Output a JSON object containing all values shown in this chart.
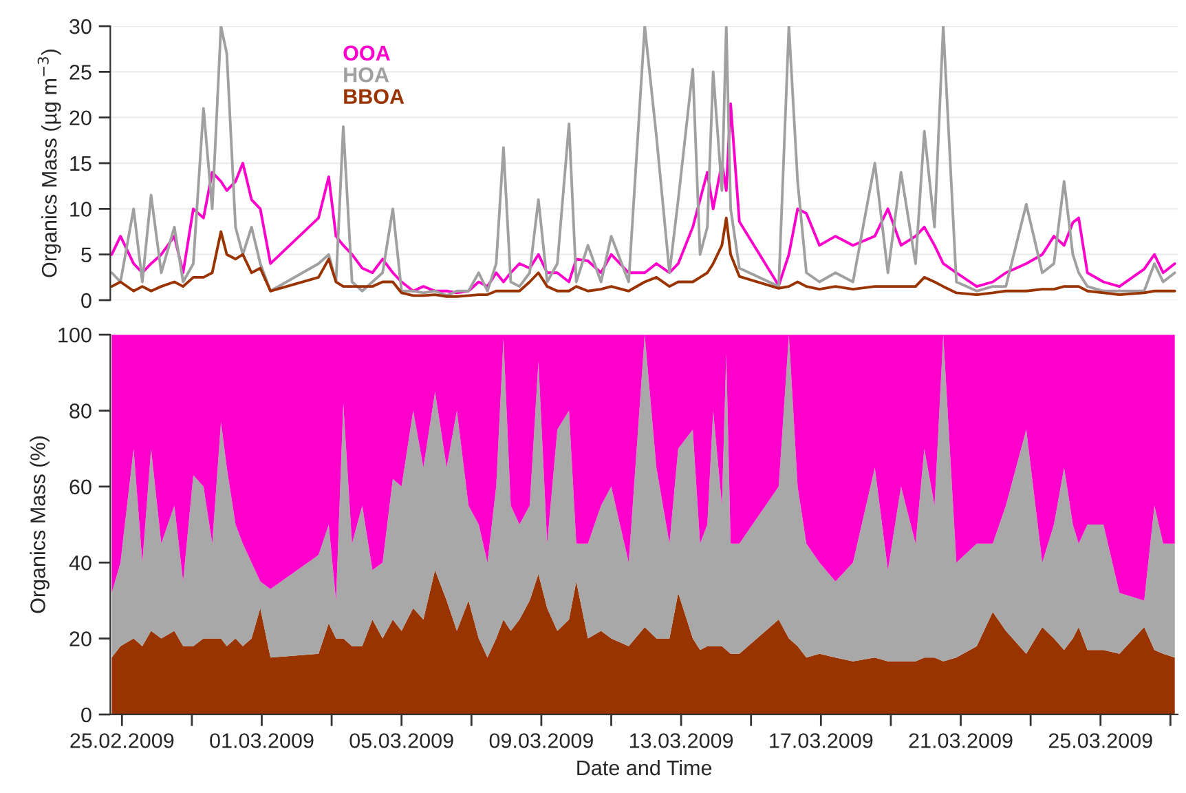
{
  "chart_data": [
    {
      "type": "line",
      "ylabel": "Organics Mass (µg m$^{−3}$)",
      "xlim": [
        "2009-02-24T16:00",
        "2009-03-27T05:00"
      ],
      "ylim": [
        0,
        30
      ],
      "yticks": [
        0,
        5,
        10,
        15,
        20,
        25,
        30
      ],
      "grid": "y",
      "legend": "top left",
      "tick_labels": "y",
      "line_style": "solid",
      "x": [
        "2009-02-24T17:00",
        "2009-02-24T23:00",
        "2009-02-25T08:00",
        "2009-02-25T14:00",
        "2009-02-25T20:00",
        "2009-02-26T03:00",
        "2009-02-26T12:00",
        "2009-02-26T18:00",
        "2009-02-27T01:00",
        "2009-02-27T08:00",
        "2009-02-27T14:00",
        "2009-02-27T20:00",
        "2009-02-28T00:00",
        "2009-02-28T06:00",
        "2009-02-28T11:00",
        "2009-02-28T17:00",
        "2009-02-28T23:00",
        "2009-03-01T06:00",
        "2009-03-02T15:00",
        "2009-03-02T22:00",
        "2009-03-03T03:00",
        "2009-03-03T08:00",
        "2009-03-03T14:00",
        "2009-03-03T21:00",
        "2009-03-04T04:00",
        "2009-03-04T11:00",
        "2009-03-04T18:00",
        "2009-03-05T00:00",
        "2009-03-05T08:00",
        "2009-03-05T15:00",
        "2009-03-05T23:00",
        "2009-03-06T07:00",
        "2009-03-06T14:00",
        "2009-03-06T22:00",
        "2009-03-07T05:00",
        "2009-03-07T11:00",
        "2009-03-07T17:00",
        "2009-03-07T22:00",
        "2009-03-08T03:00",
        "2009-03-08T09:00",
        "2009-03-08T16:00",
        "2009-03-08T22:00",
        "2009-03-09T04:00",
        "2009-03-09T11:00",
        "2009-03-09T19:00",
        "2009-03-10T00:00",
        "2009-03-10T08:00",
        "2009-03-10T17:00",
        "2009-03-11T00:00",
        "2009-03-11T12:00",
        "2009-03-11T23:00",
        "2009-03-12T07:00",
        "2009-03-12T16:00",
        "2009-03-12T22:00",
        "2009-03-13T08:00",
        "2009-03-13T13:00",
        "2009-03-13T18:00",
        "2009-03-13T22:00",
        "2009-03-14T04:00",
        "2009-03-14T07:00",
        "2009-03-14T10:00",
        "2009-03-14T16:00",
        "2009-03-15T19:00",
        "2009-03-16T02:00",
        "2009-03-16T08:00",
        "2009-03-16T14:00",
        "2009-03-16T23:00",
        "2009-03-17T10:00",
        "2009-03-17T22:00",
        "2009-03-18T13:00",
        "2009-03-18T22:00",
        "2009-03-19T07:00",
        "2009-03-19T17:00",
        "2009-03-19T23:00",
        "2009-03-20T06:00",
        "2009-03-20T12:00",
        "2009-03-20T21:00",
        "2009-03-21T11:00",
        "2009-03-21T22:00",
        "2009-03-22T07:00",
        "2009-03-22T21:00",
        "2009-03-23T08:00",
        "2009-03-23T16:00",
        "2009-03-23T23:00",
        "2009-03-24T05:00",
        "2009-03-24T09:00",
        "2009-03-24T15:00",
        "2009-03-25T02:00",
        "2009-03-25T13:00",
        "2009-03-26T06:00",
        "2009-03-26T13:00",
        "2009-03-26T19:00",
        "2009-03-27T03:00"
      ],
      "series": [
        {
          "name": "OOA",
          "color": "#ff00cc",
          "values": [
            5,
            7,
            4,
            3,
            4,
            5,
            7,
            3,
            10,
            9,
            14,
            13,
            12,
            13,
            15,
            11,
            10,
            4,
            9,
            13.5,
            7,
            6,
            5,
            3.5,
            3,
            4.5,
            3,
            2,
            1,
            1.5,
            1,
            1,
            0.8,
            1,
            2,
            1.5,
            3,
            2,
            3,
            4,
            3.5,
            5,
            3,
            3,
            2,
            4.5,
            4.3,
            3,
            5,
            3,
            3,
            4,
            3,
            4,
            8,
            11,
            14,
            10,
            15,
            12,
            21.5,
            8.6,
            1.6,
            5,
            10,
            9.5,
            6,
            7,
            6,
            7,
            10,
            6,
            7,
            8,
            6,
            4,
            3,
            1.5,
            2,
            3,
            4,
            5,
            7,
            6,
            8.5,
            9,
            3,
            2,
            1.5,
            3.4,
            5,
            3,
            4
          ]
        },
        {
          "name": "HOA",
          "color": "#a0a0a0",
          "values": [
            3,
            2,
            10,
            2,
            11.5,
            3,
            8,
            2,
            4,
            21,
            10,
            30,
            27,
            8,
            5,
            8,
            4,
            1,
            4,
            5,
            2,
            19,
            2,
            1,
            2,
            3,
            10,
            1,
            1,
            0.8,
            1,
            0.5,
            1,
            1,
            3,
            1,
            4,
            16.7,
            2,
            1.5,
            3,
            11,
            2,
            4,
            19.3,
            2,
            6,
            2,
            7,
            2,
            30,
            18,
            3,
            11,
            25.3,
            5,
            8,
            25,
            12,
            30,
            10,
            3.5,
            1.5,
            30,
            13,
            3,
            2,
            3,
            2,
            15,
            3,
            14,
            4,
            18.5,
            8,
            30,
            2,
            1,
            1.5,
            1.5,
            10.5,
            3,
            4,
            13,
            5,
            3,
            1.5,
            1,
            1,
            1,
            4,
            2,
            3
          ]
        },
        {
          "name": "BBOA",
          "color": "#993300",
          "values": [
            1.5,
            2,
            1,
            1.5,
            1,
            1.5,
            2,
            1.5,
            2.5,
            2.5,
            3,
            7.5,
            5,
            4.5,
            5,
            3,
            3.5,
            1,
            2.5,
            4.5,
            2,
            1.5,
            1.5,
            1.5,
            1.5,
            2,
            2,
            0.8,
            0.5,
            0.5,
            0.6,
            0.4,
            0.4,
            0.5,
            0.6,
            0.6,
            1,
            1,
            1,
            1,
            2,
            3,
            1.5,
            1,
            1,
            1.5,
            1,
            1.2,
            1.5,
            1,
            2,
            2.5,
            1.5,
            2,
            2,
            2.5,
            3,
            4,
            6,
            9,
            5,
            2.6,
            1.3,
            1.5,
            2,
            1.5,
            1.2,
            1.5,
            1.2,
            1.5,
            1.5,
            1.5,
            1.5,
            2.5,
            2,
            1.5,
            0.8,
            0.6,
            0.8,
            1,
            1,
            1.2,
            1.2,
            1.5,
            1.5,
            1.5,
            1,
            0.8,
            0.6,
            0.8,
            1,
            1,
            1
          ]
        }
      ]
    },
    {
      "type": "area",
      "stacked": true,
      "xlabel": "Date and Time",
      "ylabel": "Organics Mass (%)",
      "xlim": [
        "2009-02-24T16:00",
        "2009-03-27T05:00"
      ],
      "ylim": [
        0,
        100
      ],
      "yticks": [
        0,
        20,
        40,
        60,
        80,
        100
      ],
      "xticks": [
        {
          "value": "2009-02-25",
          "label": "25.02.2009"
        },
        {
          "value": "2009-02-27",
          "label": null
        },
        {
          "value": "2009-03-01",
          "label": "01.03.2009"
        },
        {
          "value": "2009-03-03",
          "label": null
        },
        {
          "value": "2009-03-05",
          "label": "05.03.2009"
        },
        {
          "value": "2009-03-07",
          "label": null
        },
        {
          "value": "2009-03-09",
          "label": "09.03.2009"
        },
        {
          "value": "2009-03-11",
          "label": null
        },
        {
          "value": "2009-03-13",
          "label": "13.03.2009"
        },
        {
          "value": "2009-03-15",
          "label": null
        },
        {
          "value": "2009-03-17",
          "label": "17.03.2009"
        },
        {
          "value": "2009-03-19",
          "label": null
        },
        {
          "value": "2009-03-21",
          "label": "21.03.2009"
        },
        {
          "value": "2009-03-23",
          "label": null
        },
        {
          "value": "2009-03-25",
          "label": "25.03.2009"
        },
        {
          "value": "2009-03-27",
          "label": null
        }
      ],
      "x": [
        "2009-02-24T17:00",
        "2009-02-24T23:00",
        "2009-02-25T08:00",
        "2009-02-25T14:00",
        "2009-02-25T20:00",
        "2009-02-26T03:00",
        "2009-02-26T12:00",
        "2009-02-26T18:00",
        "2009-02-27T01:00",
        "2009-02-27T08:00",
        "2009-02-27T14:00",
        "2009-02-27T20:00",
        "2009-02-28T00:00",
        "2009-02-28T06:00",
        "2009-02-28T11:00",
        "2009-02-28T17:00",
        "2009-02-28T23:00",
        "2009-03-01T06:00",
        "2009-03-02T15:00",
        "2009-03-02T22:00",
        "2009-03-03T03:00",
        "2009-03-03T08:00",
        "2009-03-03T14:00",
        "2009-03-03T21:00",
        "2009-03-04T04:00",
        "2009-03-04T11:00",
        "2009-03-04T18:00",
        "2009-03-05T00:00",
        "2009-03-05T08:00",
        "2009-03-05T15:00",
        "2009-03-05T23:00",
        "2009-03-06T07:00",
        "2009-03-06T14:00",
        "2009-03-06T22:00",
        "2009-03-07T05:00",
        "2009-03-07T11:00",
        "2009-03-07T17:00",
        "2009-03-07T22:00",
        "2009-03-08T03:00",
        "2009-03-08T09:00",
        "2009-03-08T16:00",
        "2009-03-08T22:00",
        "2009-03-09T04:00",
        "2009-03-09T11:00",
        "2009-03-09T19:00",
        "2009-03-10T00:00",
        "2009-03-10T08:00",
        "2009-03-10T17:00",
        "2009-03-11T00:00",
        "2009-03-11T12:00",
        "2009-03-11T23:00",
        "2009-03-12T07:00",
        "2009-03-12T16:00",
        "2009-03-12T22:00",
        "2009-03-13T08:00",
        "2009-03-13T13:00",
        "2009-03-13T18:00",
        "2009-03-13T22:00",
        "2009-03-14T04:00",
        "2009-03-14T07:00",
        "2009-03-14T10:00",
        "2009-03-14T16:00",
        "2009-03-15T19:00",
        "2009-03-16T02:00",
        "2009-03-16T08:00",
        "2009-03-16T14:00",
        "2009-03-16T23:00",
        "2009-03-17T10:00",
        "2009-03-17T22:00",
        "2009-03-18T13:00",
        "2009-03-18T22:00",
        "2009-03-19T07:00",
        "2009-03-19T17:00",
        "2009-03-19T23:00",
        "2009-03-20T06:00",
        "2009-03-20T12:00",
        "2009-03-20T21:00",
        "2009-03-21T11:00",
        "2009-03-21T22:00",
        "2009-03-22T07:00",
        "2009-03-22T21:00",
        "2009-03-23T08:00",
        "2009-03-23T16:00",
        "2009-03-23T23:00",
        "2009-03-24T05:00",
        "2009-03-24T09:00",
        "2009-03-24T15:00",
        "2009-03-25T02:00",
        "2009-03-25T13:00",
        "2009-03-26T06:00",
        "2009-03-26T13:00",
        "2009-03-26T19:00",
        "2009-03-27T03:00"
      ],
      "series": [
        {
          "color": "#993300",
          "values": [
            15,
            18,
            20,
            18,
            22,
            20,
            22,
            18,
            18,
            20,
            20,
            20,
            18,
            20,
            18,
            20,
            28,
            15,
            16,
            24,
            20,
            20,
            18,
            18,
            25,
            20,
            25,
            22,
            28,
            25,
            38,
            30,
            22,
            30,
            20,
            15,
            20,
            25,
            22,
            25,
            30,
            37,
            28,
            22,
            25,
            35,
            20,
            22,
            20,
            18,
            23,
            20,
            20,
            32,
            20,
            17,
            18,
            18,
            18,
            17,
            16,
            16,
            25,
            20,
            18,
            15,
            16,
            15,
            14,
            15,
            14,
            14,
            14,
            15,
            15,
            14,
            15,
            18,
            27,
            22,
            16,
            23,
            20,
            17,
            20,
            23,
            17,
            17,
            16,
            23,
            17,
            16,
            15
          ]
        },
        {
          "color": "#a8a8a8",
          "values": [
            17,
            22,
            50,
            22,
            48,
            25,
            33,
            17,
            45,
            40,
            25,
            57,
            47,
            30,
            27,
            20,
            7,
            18,
            26,
            26,
            10,
            62,
            27,
            37,
            13,
            20,
            37,
            38,
            52,
            40,
            47,
            35,
            58,
            25,
            30,
            25,
            40,
            74,
            33,
            25,
            25,
            56,
            17,
            53,
            55,
            10,
            25,
            33,
            40,
            22,
            77,
            45,
            25,
            38,
            55,
            28,
            32,
            62,
            37,
            78,
            29,
            29,
            35,
            80,
            42,
            30,
            24,
            20,
            26,
            50,
            24,
            46,
            31,
            55,
            40,
            86,
            25,
            27,
            18,
            33,
            59,
            17,
            30,
            48,
            30,
            22,
            33,
            33,
            16,
            7,
            38,
            29,
            30
          ]
        },
        {
          "color": "#ff00cc",
          "values": [
            68,
            60,
            30,
            60,
            30,
            55,
            45,
            65,
            37,
            40,
            55,
            23,
            35,
            50,
            55,
            60,
            65,
            67,
            58,
            50,
            70,
            18,
            55,
            45,
            62,
            60,
            38,
            40,
            20,
            35,
            15,
            35,
            20,
            45,
            50,
            60,
            40,
            1,
            45,
            50,
            45,
            7,
            55,
            25,
            20,
            55,
            55,
            45,
            40,
            60,
            0,
            35,
            55,
            30,
            25,
            55,
            50,
            20,
            45,
            5,
            55,
            55,
            40,
            0,
            40,
            55,
            60,
            65,
            60,
            35,
            62,
            40,
            55,
            30,
            45,
            0,
            60,
            55,
            55,
            45,
            25,
            60,
            50,
            35,
            50,
            55,
            50,
            50,
            68,
            70,
            45,
            55,
            55
          ]
        }
      ]
    }
  ]
}
